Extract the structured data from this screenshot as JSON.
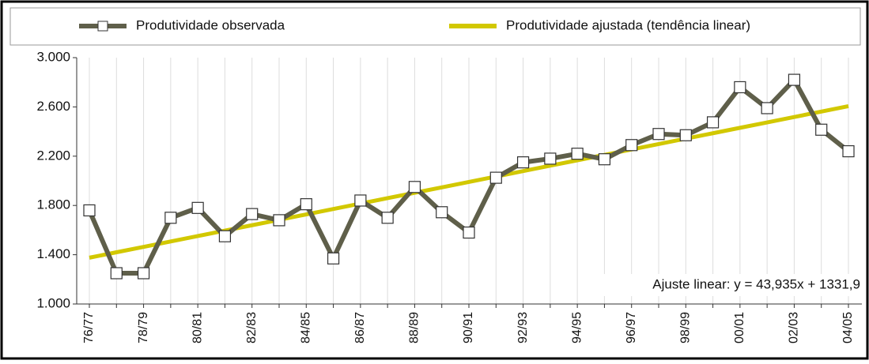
{
  "chart_data": {
    "type": "line",
    "categories": [
      "76/77",
      null,
      "78/79",
      null,
      "80/81",
      null,
      "82/83",
      null,
      "84/85",
      null,
      "86/87",
      null,
      "88/89",
      null,
      "90/91",
      null,
      "92/93",
      null,
      "94/95",
      null,
      "96/97",
      null,
      "98/99",
      null,
      "00/01",
      null,
      "02/03",
      null,
      "04/05"
    ],
    "series": [
      {
        "name": "Produtividade observada",
        "color": "#5f5f4a",
        "marker": "square",
        "values": [
          1760,
          1250,
          1250,
          1700,
          1780,
          1550,
          1730,
          1680,
          1810,
          1370,
          1840,
          1700,
          1950,
          1745,
          1580,
          2025,
          2150,
          2180,
          2220,
          2175,
          2290,
          2380,
          2370,
          2475,
          2760,
          2590,
          2820,
          2415,
          2240
        ]
      },
      {
        "name": "Produtividade ajustada (tendência linear)",
        "color": "#d2c800",
        "values": [
          1375.8,
          1419.8,
          1463.7,
          1507.6,
          1551.6,
          1595.5,
          1639.4,
          1683.4,
          1727.3,
          1771.3,
          1815.2,
          1859.1,
          1903.1,
          1947.0,
          1990.9,
          2034.9,
          2078.8,
          2122.7,
          2166.7,
          2210.6,
          2254.5,
          2298.5,
          2342.4,
          2386.3,
          2430.3,
          2474.2,
          2518.1,
          2562.1,
          2606.0
        ]
      }
    ],
    "annotation": "Ajuste linear: y = 43,935x + 1331,9",
    "ylim": [
      1000,
      3000
    ],
    "yticks": [
      {
        "value": 1000,
        "label": "1.000"
      },
      {
        "value": 1400,
        "label": "1.400"
      },
      {
        "value": 1800,
        "label": "1.800"
      },
      {
        "value": 2200,
        "label": "2.200"
      },
      {
        "value": 2600,
        "label": "2.600"
      },
      {
        "value": 3000,
        "label": "3.000"
      }
    ],
    "grid": "vertical",
    "legend": "top"
  }
}
